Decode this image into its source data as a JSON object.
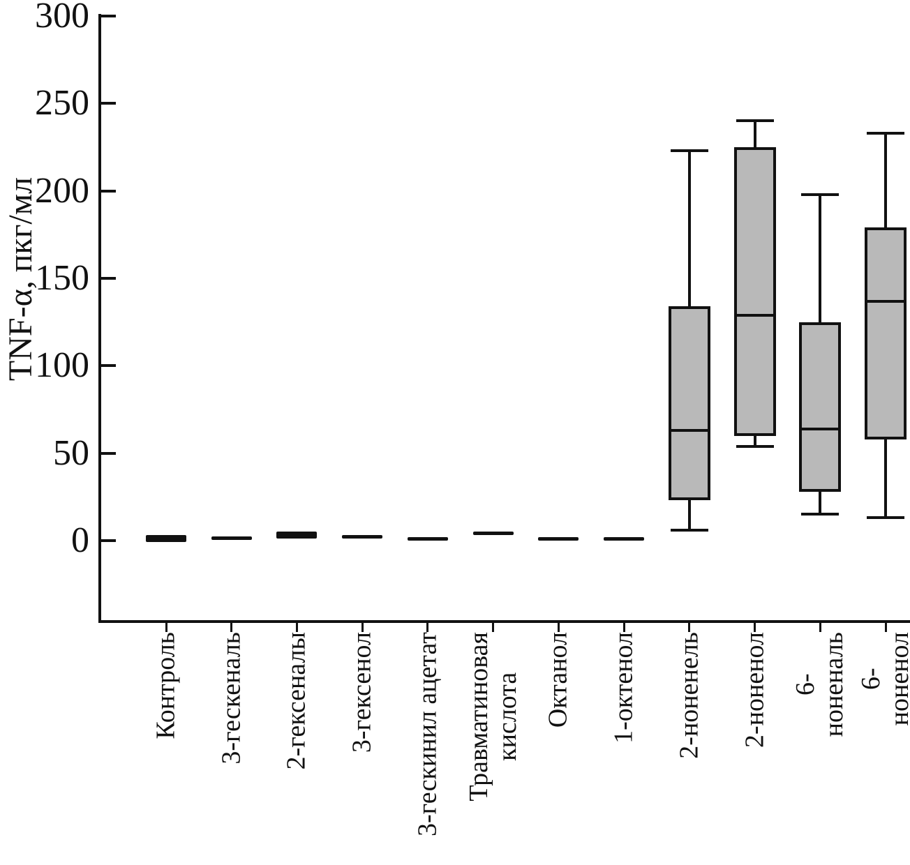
{
  "chart_data": {
    "type": "boxplot",
    "title": "",
    "ylabel": "TNF-α, пкг/мл",
    "xlabel": "",
    "ylim": [
      -45,
      300
    ],
    "yticks": [
      0,
      50,
      100,
      150,
      200,
      250,
      300
    ],
    "grid": "off",
    "legend": "none",
    "box_fill_color": "#b9b9b9",
    "line_color": "#111111",
    "categories": [
      "Контроль",
      "3-гескеналь",
      "2-гексеналы",
      "3-гексенол",
      "3-гескинил ацетат",
      "Травматиновая\nкислота",
      "Октанол",
      "1-октенол",
      "2-ноненель",
      "2-ноненол",
      "6-ноненаль",
      "6-ноненол"
    ],
    "series": [
      {
        "name": "Контроль",
        "style": "dash-thick",
        "median": 1
      },
      {
        "name": "3-гескеналь",
        "style": "dash-thin",
        "median": 1.5
      },
      {
        "name": "2-гексеналы",
        "style": "dash-thick",
        "median": 3
      },
      {
        "name": "3-гексенол",
        "style": "dash-thin",
        "median": 2
      },
      {
        "name": "3-гескинил ацетат",
        "style": "dash-thin",
        "median": 1
      },
      {
        "name": "Травматиновая кислота",
        "style": "dash-thin",
        "median": 4
      },
      {
        "name": "Октанол",
        "style": "dash-thin",
        "median": 1
      },
      {
        "name": "1-октенол",
        "style": "dash-thin",
        "median": 1
      },
      {
        "name": "2-ноненель",
        "style": "box",
        "whisker_low": 6,
        "q1": 23,
        "median": 63,
        "q3": 134,
        "whisker_high": 223
      },
      {
        "name": "2-ноненол",
        "style": "box",
        "whisker_low": 54,
        "q1": 60,
        "median": 129,
        "q3": 225,
        "whisker_high": 240
      },
      {
        "name": "6-ноненаль",
        "style": "box",
        "whisker_low": 15,
        "q1": 28,
        "median": 64,
        "q3": 125,
        "whisker_high": 198
      },
      {
        "name": "6-ноненол",
        "style": "box",
        "whisker_low": 13,
        "q1": 58,
        "median": 137,
        "q3": 179,
        "whisker_high": 233
      }
    ]
  }
}
